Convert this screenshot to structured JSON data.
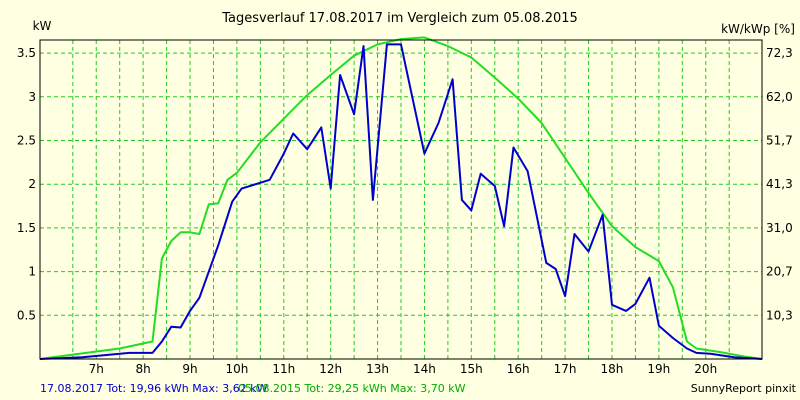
{
  "chart_data": {
    "type": "line",
    "title": "Tagesverlauf 17.08.2017 im Vergleich zum 05.08.2015",
    "ylabel_left": "kW",
    "ylabel_right": "kW/kWp [%]",
    "ylim": [
      0,
      3.65
    ],
    "xlim": [
      5.8,
      21.2
    ],
    "grid": true,
    "x_ticks": [
      {
        "x": 7,
        "label": "7h"
      },
      {
        "x": 8,
        "label": "8h"
      },
      {
        "x": 9,
        "label": "9h"
      },
      {
        "x": 10,
        "label": "10h"
      },
      {
        "x": 11,
        "label": "11h"
      },
      {
        "x": 12,
        "label": "12h"
      },
      {
        "x": 13,
        "label": "13h"
      },
      {
        "x": 14,
        "label": "14h"
      },
      {
        "x": 15,
        "label": "15h"
      },
      {
        "x": 16,
        "label": "16h"
      },
      {
        "x": 17,
        "label": "17h"
      },
      {
        "x": 18,
        "label": "18h"
      },
      {
        "x": 19,
        "label": "19h"
      },
      {
        "x": 20,
        "label": "20h"
      }
    ],
    "y_ticks_left": [
      {
        "y": 0.5,
        "label": "0.5"
      },
      {
        "y": 1,
        "label": "1"
      },
      {
        "y": 1.5,
        "label": "1.5"
      },
      {
        "y": 2,
        "label": "2"
      },
      {
        "y": 2.5,
        "label": "2.5"
      },
      {
        "y": 3,
        "label": "3"
      },
      {
        "y": 3.5,
        "label": "3.5"
      }
    ],
    "y_ticks_right": [
      {
        "y": 0.5,
        "label": "10,3"
      },
      {
        "y": 1,
        "label": "20,7"
      },
      {
        "y": 1.5,
        "label": "31,0"
      },
      {
        "y": 2,
        "label": "41,3"
      },
      {
        "y": 2.5,
        "label": "51,7"
      },
      {
        "y": 3,
        "label": "62,0"
      },
      {
        "y": 3.5,
        "label": "72,3"
      }
    ],
    "series": [
      {
        "name": "17.08.2017",
        "color": "#0000cc",
        "points": [
          [
            5.8,
            0.0
          ],
          [
            6.7,
            0.02
          ],
          [
            7.7,
            0.07
          ],
          [
            8.2,
            0.07
          ],
          [
            8.4,
            0.2
          ],
          [
            8.6,
            0.37
          ],
          [
            8.8,
            0.36
          ],
          [
            9.0,
            0.55
          ],
          [
            9.2,
            0.7
          ],
          [
            9.6,
            1.3
          ],
          [
            9.9,
            1.8
          ],
          [
            10.1,
            1.95
          ],
          [
            10.7,
            2.05
          ],
          [
            11.0,
            2.35
          ],
          [
            11.2,
            2.58
          ],
          [
            11.5,
            2.4
          ],
          [
            11.8,
            2.65
          ],
          [
            12.0,
            1.95
          ],
          [
            12.2,
            3.25
          ],
          [
            12.5,
            2.8
          ],
          [
            12.7,
            3.58
          ],
          [
            12.9,
            1.82
          ],
          [
            13.2,
            3.6
          ],
          [
            13.5,
            3.6
          ],
          [
            14.0,
            2.35
          ],
          [
            14.3,
            2.7
          ],
          [
            14.6,
            3.2
          ],
          [
            14.8,
            1.82
          ],
          [
            15.0,
            1.7
          ],
          [
            15.2,
            2.12
          ],
          [
            15.5,
            1.98
          ],
          [
            15.7,
            1.52
          ],
          [
            15.9,
            2.42
          ],
          [
            16.2,
            2.15
          ],
          [
            16.6,
            1.1
          ],
          [
            16.8,
            1.03
          ],
          [
            17.0,
            0.72
          ],
          [
            17.2,
            1.43
          ],
          [
            17.5,
            1.23
          ],
          [
            17.8,
            1.65
          ],
          [
            18.0,
            0.62
          ],
          [
            18.3,
            0.55
          ],
          [
            18.5,
            0.63
          ],
          [
            18.8,
            0.93
          ],
          [
            19.0,
            0.38
          ],
          [
            19.3,
            0.24
          ],
          [
            19.6,
            0.12
          ],
          [
            19.8,
            0.07
          ],
          [
            20.1,
            0.06
          ],
          [
            20.6,
            0.02
          ],
          [
            21.2,
            0.0
          ]
        ]
      },
      {
        "name": "05.08.2015",
        "color": "#22dd22",
        "points": [
          [
            5.8,
            0.0
          ],
          [
            6.5,
            0.05
          ],
          [
            7.5,
            0.12
          ],
          [
            8.2,
            0.2
          ],
          [
            8.4,
            1.15
          ],
          [
            8.6,
            1.35
          ],
          [
            8.8,
            1.45
          ],
          [
            9.0,
            1.45
          ],
          [
            9.2,
            1.43
          ],
          [
            9.4,
            1.77
          ],
          [
            9.6,
            1.78
          ],
          [
            9.8,
            2.05
          ],
          [
            10.0,
            2.13
          ],
          [
            10.5,
            2.48
          ],
          [
            11.0,
            2.75
          ],
          [
            11.5,
            3.02
          ],
          [
            12.0,
            3.25
          ],
          [
            12.5,
            3.47
          ],
          [
            13.0,
            3.6
          ],
          [
            13.5,
            3.66
          ],
          [
            14.0,
            3.68
          ],
          [
            14.5,
            3.58
          ],
          [
            15.0,
            3.45
          ],
          [
            15.5,
            3.22
          ],
          [
            16.0,
            2.98
          ],
          [
            16.5,
            2.7
          ],
          [
            17.0,
            2.3
          ],
          [
            17.5,
            1.9
          ],
          [
            18.0,
            1.52
          ],
          [
            18.5,
            1.28
          ],
          [
            19.0,
            1.12
          ],
          [
            19.3,
            0.82
          ],
          [
            19.6,
            0.2
          ],
          [
            19.8,
            0.12
          ],
          [
            20.3,
            0.08
          ],
          [
            20.8,
            0.03
          ],
          [
            21.2,
            0.0
          ]
        ]
      }
    ]
  },
  "footer": {
    "series1_summary": "17.08.2017 Tot: 19,96 kWh Max: 3,62 kW",
    "series2_summary": "05.08.2015 Tot: 29,25 kWh Max: 3,70 kW",
    "source": "SunnyReport pinxit"
  },
  "colors": {
    "background": "#ffffe1",
    "grid": "#22cc22",
    "series1": "#0000cc",
    "series2": "#22dd22"
  }
}
